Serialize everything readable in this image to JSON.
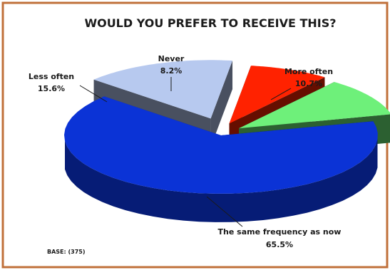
{
  "chart_data": {
    "type": "pie",
    "title": "WOULD YOU PREFER TO RECEIVE THIS?",
    "base_note": "BASE: (375)",
    "slices": [
      {
        "label": "The same frequency as now",
        "value": 65.5,
        "value_label": "65.5%",
        "color": "#0b33d6"
      },
      {
        "label": "Less often",
        "value": 15.6,
        "value_label": "15.6%",
        "color": "#b7c9ef"
      },
      {
        "label": "Never",
        "value": 8.2,
        "value_label": "8.2%",
        "color": "#ff2200"
      },
      {
        "label": "More often",
        "value": 10.7,
        "value_label": "10.7%",
        "color": "#6ef07a"
      }
    ],
    "style": "3d-exploded",
    "legend": "none"
  },
  "colors": {
    "frame_border": "#c0703a",
    "background": "#ffffff"
  }
}
